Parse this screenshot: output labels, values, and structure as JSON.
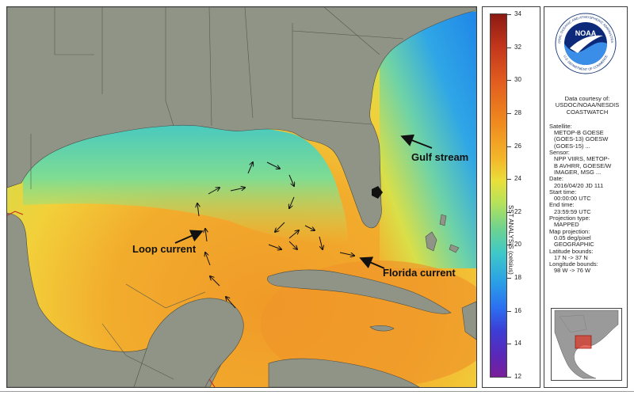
{
  "map": {
    "annotations": {
      "gulf_stream": "Gulf stream",
      "loop_current": "Loop current",
      "florida_current": "Florida current"
    },
    "colors": {
      "land": "#8f9487",
      "warm_water": "#f0a12a",
      "mid_water": "#f3cf3b",
      "cool_water": "#69d7a6",
      "cold_water": "#2e8fe6"
    }
  },
  "colorbar": {
    "ticks": [
      "34",
      "32",
      "30",
      "28",
      "26",
      "24",
      "22",
      "20",
      "18",
      "16",
      "14",
      "12"
    ],
    "label": "SST ANALYSIS (celsius)"
  },
  "info": {
    "logo_text": "NOAA",
    "logo_ring_text": "NATIONAL OCEANIC AND ATMOSPHERIC ADMINISTRATION",
    "logo_bottom_text": "U.S. DEPARTMENT OF COMMERCE",
    "courtesy_lines": [
      "Data courtesy of:",
      "USDOC/NOAA/NESDIS",
      "COASTWATCH"
    ],
    "satellite_label": "Satellite:",
    "satellite_lines": [
      "METOP-B GOESE",
      "(GOES-13) GOESW",
      "(GOES-15) ..."
    ],
    "sensor_label": "Sensor:",
    "sensor_lines": [
      "NPP VIIRS, METOP-",
      "B AVHRR, GOESE/W",
      "IMAGER, MSG ..."
    ],
    "date_label": "Date:",
    "date_value": "2016/04/20 JD 111",
    "start_label": "Start time:",
    "start_value": "00:00:00 UTC",
    "end_label": "End time:",
    "end_value": "23:59:59 UTC",
    "projection_label": "Projection type:",
    "projection_value": "MAPPED",
    "map_proj_label": "Map projection:",
    "map_proj_lines": [
      "0.05 deg/pixel",
      "GEOGRAPHIC"
    ],
    "lat_label": "Latitude bounds:",
    "lat_value": "17 N -> 37 N",
    "lon_label": "Longitude bounds:",
    "lon_value": "98 W -> 76 W"
  }
}
